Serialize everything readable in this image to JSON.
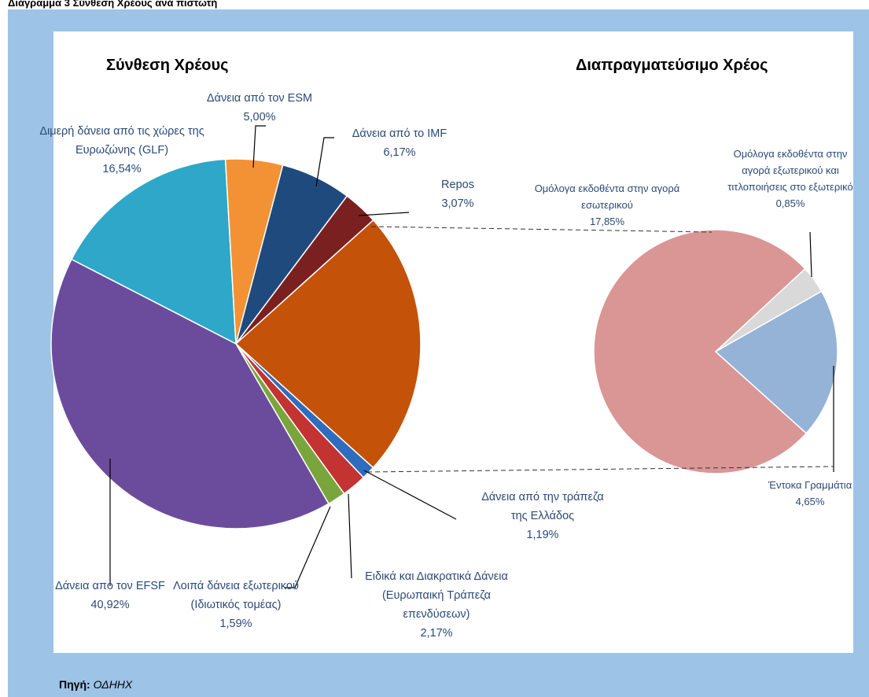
{
  "page_title": "Διάγραμμα 3 Σύνθεση Χρέους ανά πιστωτή",
  "source": {
    "label": "Πηγή:",
    "text": "ΟΔΗΗΧ"
  },
  "chart_data": {
    "type": "pie_of_pie",
    "main": {
      "title": "Σύνθεση Χρέους",
      "categories": [
        "Δάνεια από την τράπεζα της Ελλάδος",
        "Ειδικά και Διακρατικά Δάνεια (Ευρωπαική Τράπεζα επενδύσεων)",
        "Λοιπά δάνεια εξωτερικού (Ιδιωτικός τομέας)",
        "Δάνεια από τον EFSF",
        "Διμερή δάνεια από τις χώρες της Ευρωζώνης (GLF)",
        "Δάνεια από τον ESM",
        "Δάνεια από το IMF",
        "Repos"
      ],
      "values": [
        1.19,
        2.17,
        1.59,
        40.92,
        16.54,
        5.0,
        6.17,
        3.07
      ],
      "value_labels": [
        "1,19%",
        "2,17%",
        "1,59%",
        "40,92%",
        "16,54%",
        "5,00%",
        "6,17%",
        "3,07%"
      ],
      "colors": [
        "#2f6cbd",
        "#c23331",
        "#7aa53c",
        "#6b4c9c",
        "#2ea7c8",
        "#f39234",
        "#1f4a7e",
        "#7b2020"
      ]
    },
    "secondary": {
      "title": "Διαπραγματεύσιμο Χρέος",
      "color": "#c45208",
      "categories": [
        "Ομόλογα εκδοθέντα στην αγορά εσωτερικού",
        "Ομόλογα εκδοθέντα στην αγορά εξωτερικού και τιτλοποιήσεις στο εξωτερικό",
        "Έντοκα Γραμμάτια"
      ],
      "values": [
        17.85,
        0.85,
        4.65
      ],
      "value_labels": [
        "17,85%",
        "0,85%",
        "4,65%"
      ],
      "colors": [
        "#d99695",
        "#d9d9d9",
        "#95b3d7"
      ]
    }
  }
}
